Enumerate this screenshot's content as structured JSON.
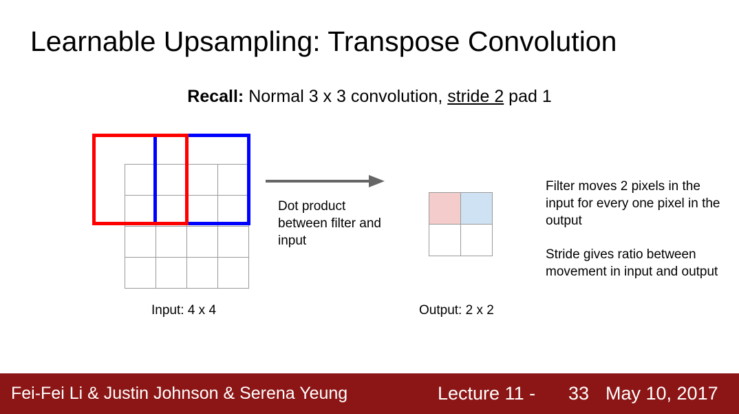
{
  "slide": {
    "title": "Learnable Upsampling: Transpose Convolution",
    "recall": {
      "label": "Recall:",
      "text1": " Normal 3 x 3 convolution, ",
      "stride": "stride 2",
      "text2": " pad 1"
    },
    "input_caption": "Input: 4 x 4",
    "output_caption": "Output: 2 x 2",
    "dot_product_note": "Dot product between filter and input",
    "filter_note": "Filter moves 2 pixels in the input for every one pixel in the output",
    "stride_note": "Stride gives ratio between movement in input and output"
  },
  "colors": {
    "red_filter": "#ff0000",
    "blue_filter": "#0000ff",
    "output_red_cell": "#f4cccc",
    "output_blue_cell": "#cfe2f3",
    "arrow": "#666666",
    "footer_bg": "#8c1515"
  },
  "footer": {
    "authors": "Fei-Fei Li & Justin Johnson & Serena Yeung",
    "lecture": "Lecture 11 -",
    "page": "33",
    "date": "May 10, 2017"
  }
}
